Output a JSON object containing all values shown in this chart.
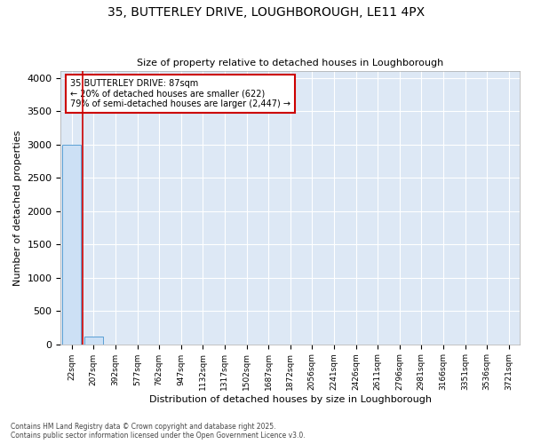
{
  "title_line1": "35, BUTTERLEY DRIVE, LOUGHBOROUGH, LE11 4PX",
  "title_line2": "Size of property relative to detached houses in Loughborough",
  "xlabel": "Distribution of detached houses by size in Loughborough",
  "ylabel": "Number of detached properties",
  "bar_color": "#cce0f5",
  "bar_edge_color": "#5a9fd4",
  "background_color": "#dde8f5",
  "annotation_box_text": "35 BUTTERLEY DRIVE: 87sqm\n← 20% of detached houses are smaller (622)\n79% of semi-detached houses are larger (2,447) →",
  "annotation_box_color": "#ffffff",
  "annotation_box_edge_color": "#cc0000",
  "vline_color": "#cc0000",
  "footer_line1": "Contains HM Land Registry data © Crown copyright and database right 2025.",
  "footer_line2": "Contains public sector information licensed under the Open Government Licence v3.0.",
  "categories": [
    "22sqm",
    "207sqm",
    "392sqm",
    "577sqm",
    "762sqm",
    "947sqm",
    "1132sqm",
    "1317sqm",
    "1502sqm",
    "1687sqm",
    "1872sqm",
    "2056sqm",
    "2241sqm",
    "2426sqm",
    "2611sqm",
    "2796sqm",
    "2981sqm",
    "3166sqm",
    "3351sqm",
    "3536sqm",
    "3721sqm"
  ],
  "values": [
    3000,
    115,
    0,
    0,
    0,
    0,
    0,
    0,
    0,
    0,
    0,
    0,
    0,
    0,
    0,
    0,
    0,
    0,
    0,
    0,
    0
  ],
  "ylim": [
    0,
    4100
  ],
  "yticks": [
    0,
    500,
    1000,
    1500,
    2000,
    2500,
    3000,
    3500,
    4000
  ]
}
